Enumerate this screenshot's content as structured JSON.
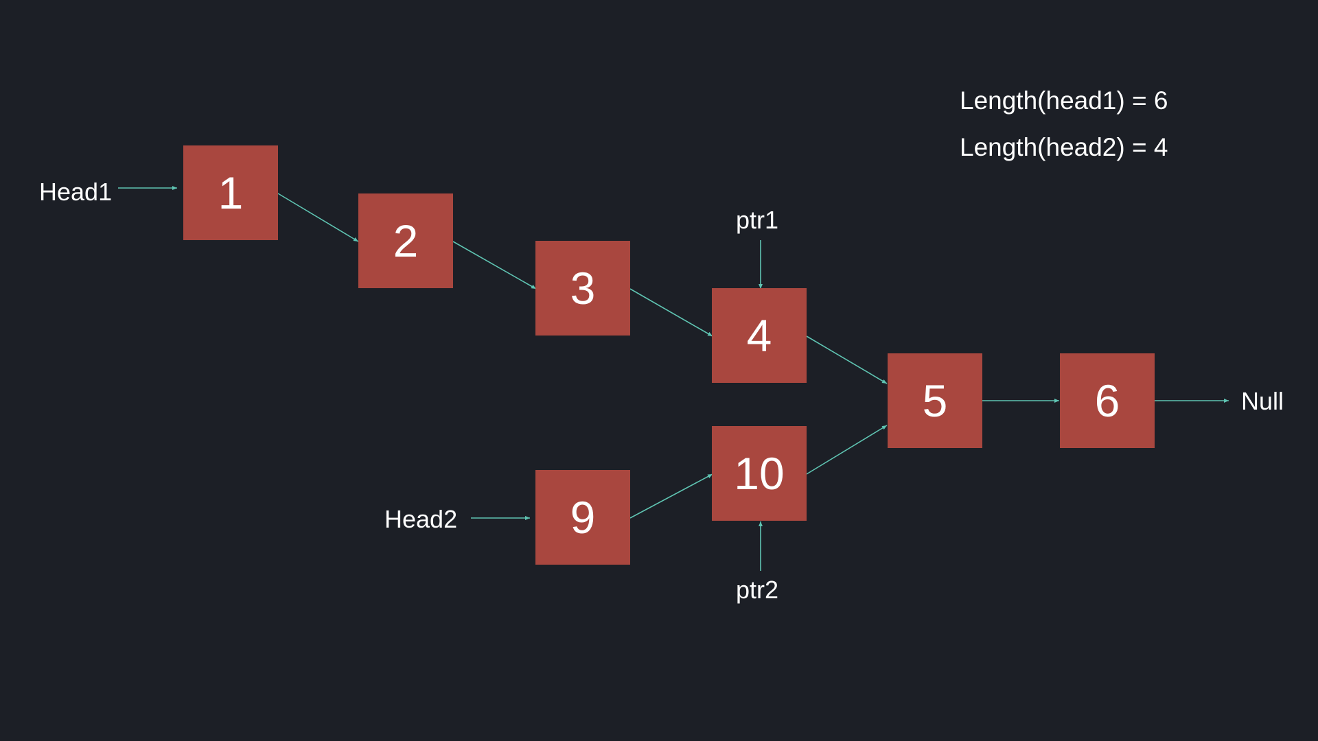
{
  "info": {
    "length_head1": "Length(head1) = 6",
    "length_head2": "Length(head2) = 4"
  },
  "labels": {
    "head1": "Head1",
    "head2": "Head2",
    "ptr1": "ptr1",
    "ptr2": "ptr2",
    "null": "Null"
  },
  "nodes": {
    "n1": "1",
    "n2": "2",
    "n3": "3",
    "n4": "4",
    "n5": "5",
    "n6": "6",
    "n9": "9",
    "n10": "10"
  },
  "colors": {
    "background": "#1c1f26",
    "node_fill": "#a9473f",
    "arrow": "#5fc4b2",
    "text": "#ffffff"
  }
}
